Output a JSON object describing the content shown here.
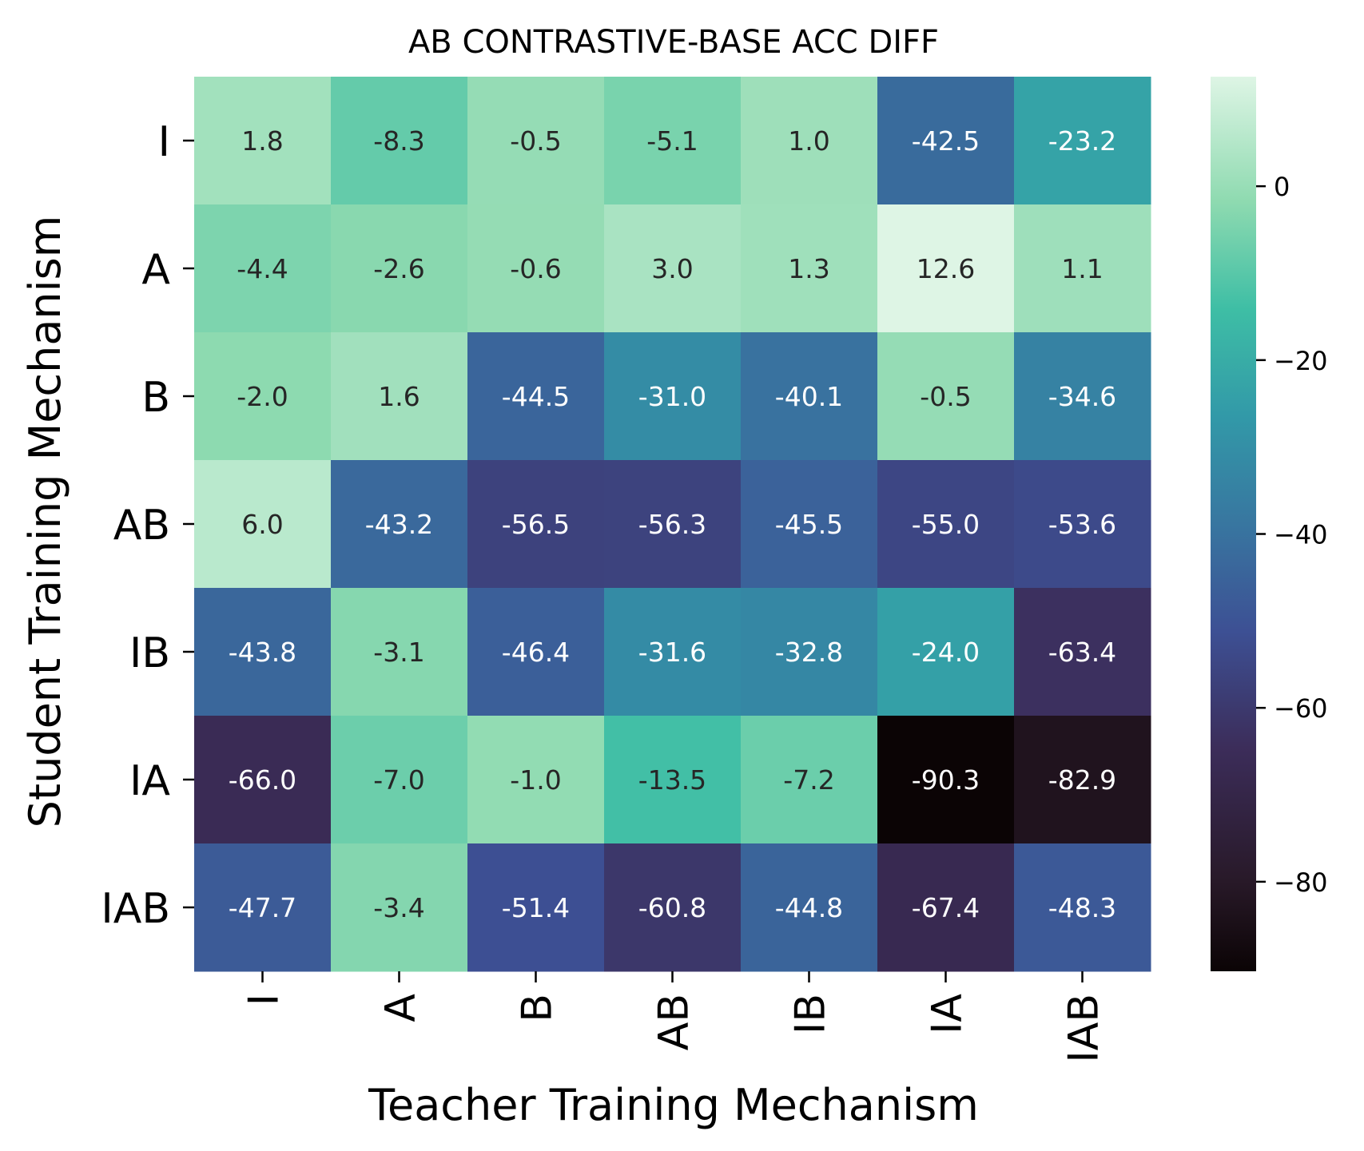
{
  "chart_data": {
    "type": "heatmap",
    "title": "AB CONTRASTIVE-BASE ACC DIFF",
    "xlabel": "Teacher Training Mechanism",
    "ylabel": "Student Training Mechanism",
    "x_categories": [
      "I",
      "A",
      "B",
      "AB",
      "IB",
      "IA",
      "IAB"
    ],
    "y_categories": [
      "I",
      "A",
      "B",
      "AB",
      "IB",
      "IA",
      "IAB"
    ],
    "values": [
      [
        1.8,
        -8.3,
        -0.5,
        -5.1,
        1.0,
        -42.5,
        -23.2
      ],
      [
        -4.4,
        -2.6,
        -0.6,
        3.0,
        1.3,
        12.6,
        1.1
      ],
      [
        -2.0,
        1.6,
        -44.5,
        -31.0,
        -40.1,
        -0.5,
        -34.6
      ],
      [
        6.0,
        -43.2,
        -56.5,
        -56.3,
        -45.5,
        -55.0,
        -53.6
      ],
      [
        -43.8,
        -3.1,
        -46.4,
        -31.6,
        -32.8,
        -24.0,
        -63.4
      ],
      [
        -66.0,
        -7.0,
        -1.0,
        -13.5,
        -7.2,
        -90.3,
        -82.9
      ],
      [
        -47.7,
        -3.4,
        -51.4,
        -60.8,
        -44.8,
        -67.4,
        -48.3
      ]
    ],
    "colorbar": {
      "range": [
        -90.3,
        12.6
      ],
      "ticks": [
        "0",
        "−20",
        "−40",
        "−60",
        "−80"
      ],
      "colormap": "mako"
    }
  }
}
